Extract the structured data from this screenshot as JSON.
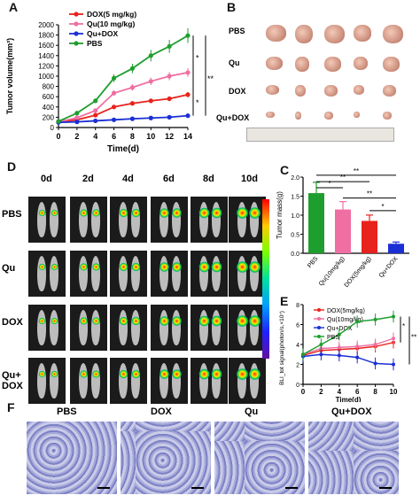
{
  "panels": {
    "a": "A",
    "b": "B",
    "c": "C",
    "d": "D",
    "e": "E",
    "f": "F"
  },
  "chart_data": [
    {
      "type": "line",
      "panel": "A",
      "xlabel": "Time(d)",
      "ylabel": "Tumor volume(mm³)",
      "x": [
        0,
        2,
        4,
        6,
        8,
        10,
        12,
        14
      ],
      "ylim": [
        0,
        2000
      ],
      "yticks": [
        "0",
        "200",
        "400",
        "600",
        "800",
        "1000",
        "1200",
        "1400",
        "1600",
        "1800",
        "2000"
      ],
      "xticks": [
        "0",
        "2",
        "4",
        "6",
        "8",
        "10",
        "12",
        "14"
      ],
      "series": [
        {
          "name": "DOX(5 mg/kg)",
          "color": "#e8221c",
          "values": [
            110,
            150,
            240,
            400,
            470,
            520,
            560,
            640
          ]
        },
        {
          "name": "Qu(10 mg/kg)",
          "color": "#ef6fa2",
          "values": [
            110,
            190,
            330,
            670,
            780,
            900,
            1000,
            1070
          ]
        },
        {
          "name": "Qu+DOX",
          "color": "#1b2fd6",
          "values": [
            100,
            110,
            130,
            150,
            170,
            185,
            200,
            230
          ]
        },
        {
          "name": "PBS",
          "color": "#1e9e2e",
          "values": [
            120,
            280,
            520,
            960,
            1150,
            1400,
            1580,
            1790
          ]
        }
      ],
      "significance": [
        "*",
        "**",
        "*"
      ]
    },
    {
      "type": "bar",
      "panel": "C",
      "ylabel": "Tumor mass(g)",
      "categories": [
        "PBS",
        "Qu(10mg/kg)",
        "DOX(5mg/kg)",
        "Qu+DOX"
      ],
      "values": [
        1.58,
        1.15,
        0.85,
        0.25
      ],
      "colors": [
        "#1e9e2e",
        "#ef6fa2",
        "#e8221c",
        "#1b2fd6"
      ],
      "ylim": [
        0,
        2.0
      ],
      "yticks": [
        "0.0",
        "0.5",
        "1.0",
        "1.5",
        "2.0"
      ],
      "significance": [
        "**",
        "**",
        "*",
        "**",
        "*"
      ]
    },
    {
      "type": "line",
      "panel": "E",
      "xlabel": "Time(d)",
      "ylabel": "BLI_tot signal(photon/s,×10⁷)",
      "x": [
        0,
        2,
        4,
        6,
        8,
        10
      ],
      "xticks": [
        "0",
        "2",
        "4",
        "6",
        "8",
        "10"
      ],
      "yticks": [
        "0",
        "2",
        "4",
        "6",
        "8"
      ],
      "ylim": [
        0,
        8
      ],
      "series": [
        {
          "name": "DOX(5mg/kg)",
          "color": "#e8221c",
          "values": [
            2.9,
            3.4,
            3.5,
            3.6,
            3.8,
            4.2
          ]
        },
        {
          "name": "Qu(10mg/kg)",
          "color": "#ef6fa2",
          "values": [
            3.0,
            3.6,
            3.7,
            3.8,
            4.0,
            4.6
          ]
        },
        {
          "name": "Qu+DOX",
          "color": "#1b2fd6",
          "values": [
            2.8,
            3.0,
            2.9,
            2.7,
            2.1,
            2.0
          ]
        },
        {
          "name": "PBS",
          "color": "#1e9e2e",
          "values": [
            3.0,
            4.0,
            5.0,
            6.3,
            6.5,
            6.8
          ]
        }
      ],
      "significance": [
        "*",
        "**"
      ]
    }
  ],
  "tumor_photos": {
    "rows": [
      "PBS",
      "Qu",
      "DOX",
      "Qu+DOX"
    ]
  },
  "bli_imaging": {
    "days": [
      "0d",
      "2d",
      "4d",
      "6d",
      "8d",
      "10d"
    ],
    "rows": [
      "PBS",
      "Qu",
      "DOX",
      "Qu+ DOX"
    ]
  },
  "histology": {
    "labels": [
      "PBS",
      "DOX",
      "Qu",
      "Qu+DOX"
    ]
  }
}
